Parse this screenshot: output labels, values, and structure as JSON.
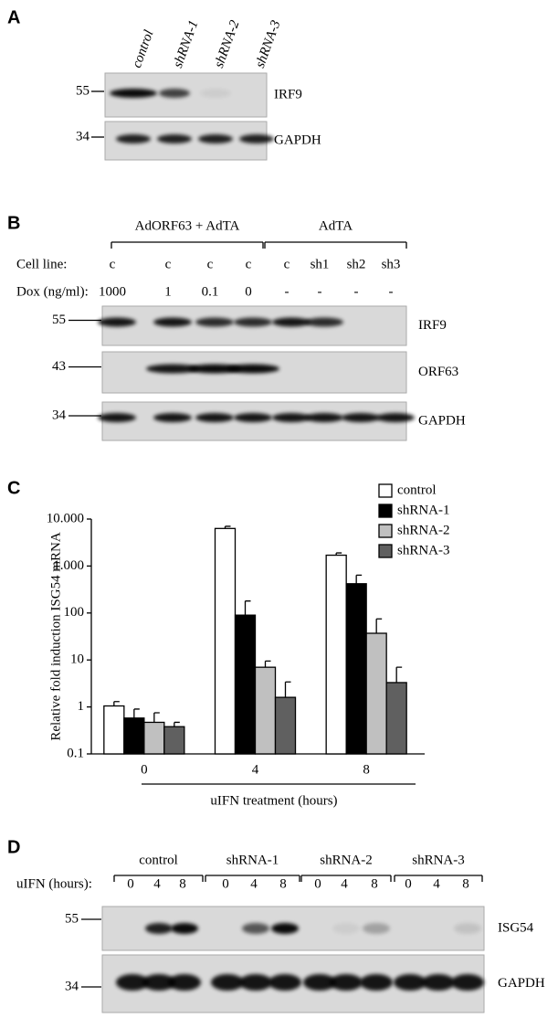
{
  "panel_a": {
    "letter": "A",
    "lanes": [
      "control",
      "shRNA-1",
      "shRNA-2",
      "shRNA-3"
    ],
    "blots": [
      {
        "marker": "55",
        "label": "IRF9"
      },
      {
        "marker": "34",
        "label": "GAPDH"
      }
    ]
  },
  "panel_b": {
    "letter": "B",
    "groups": [
      "AdORF63 + AdTA",
      "AdTA"
    ],
    "rows": [
      {
        "label": "Cell line:",
        "cells": [
          "c",
          "c",
          "c",
          "c",
          "c",
          "sh1",
          "sh2",
          "sh3"
        ]
      },
      {
        "label": "Dox (ng/ml):",
        "cells": [
          "1000",
          "1",
          "0.1",
          "0",
          "-",
          "-",
          "-",
          "-"
        ]
      }
    ],
    "blots": [
      {
        "marker": "55",
        "label": "IRF9"
      },
      {
        "marker": "43",
        "label": "ORF63"
      },
      {
        "marker": "34",
        "label": "GAPDH"
      }
    ]
  },
  "panel_c_letter": "C",
  "chart_data": {
    "type": "bar",
    "ylabel": "Relative fold induction ISG54 mRNA",
    "xlabel": "uIFN treatment (hours)",
    "categories": [
      "0",
      "4",
      "8"
    ],
    "yscale": "log",
    "ylim": [
      0.1,
      10000
    ],
    "yticks": [
      0.1,
      1,
      10,
      100,
      {
        "value": 1000,
        "label": "1.000"
      },
      {
        "value": 10000,
        "label": "10.000"
      }
    ],
    "legend": "top-right",
    "series": [
      {
        "name": "control",
        "color": "#ffffff",
        "values": [
          1.05,
          6300,
          1700
        ],
        "errors": [
          0.25,
          700,
          200
        ]
      },
      {
        "name": "shRNA-1",
        "color": "#000000",
        "values": [
          0.58,
          90,
          420
        ],
        "errors": [
          0.32,
          90,
          220
        ]
      },
      {
        "name": "shRNA-2",
        "color": "#c0c0c0",
        "values": [
          0.47,
          7,
          37
        ],
        "errors": [
          0.28,
          2.5,
          38
        ]
      },
      {
        "name": "shRNA-3",
        "color": "#606060",
        "values": [
          0.38,
          1.6,
          3.3
        ],
        "errors": [
          0.09,
          1.8,
          3.7
        ]
      }
    ]
  },
  "panel_d": {
    "letter": "D",
    "groups": [
      "control",
      "shRNA-1",
      "shRNA-2",
      "shRNA-3"
    ],
    "rows": [
      {
        "label": "uIFN (hours):",
        "cells": [
          "0",
          "4",
          "8",
          "0",
          "4",
          "8",
          "0",
          "4",
          "8",
          "0",
          "4",
          "8"
        ]
      }
    ],
    "blots": [
      {
        "marker": "55",
        "label": "ISG54"
      },
      {
        "marker": "34",
        "label": "GAPDH"
      }
    ]
  }
}
